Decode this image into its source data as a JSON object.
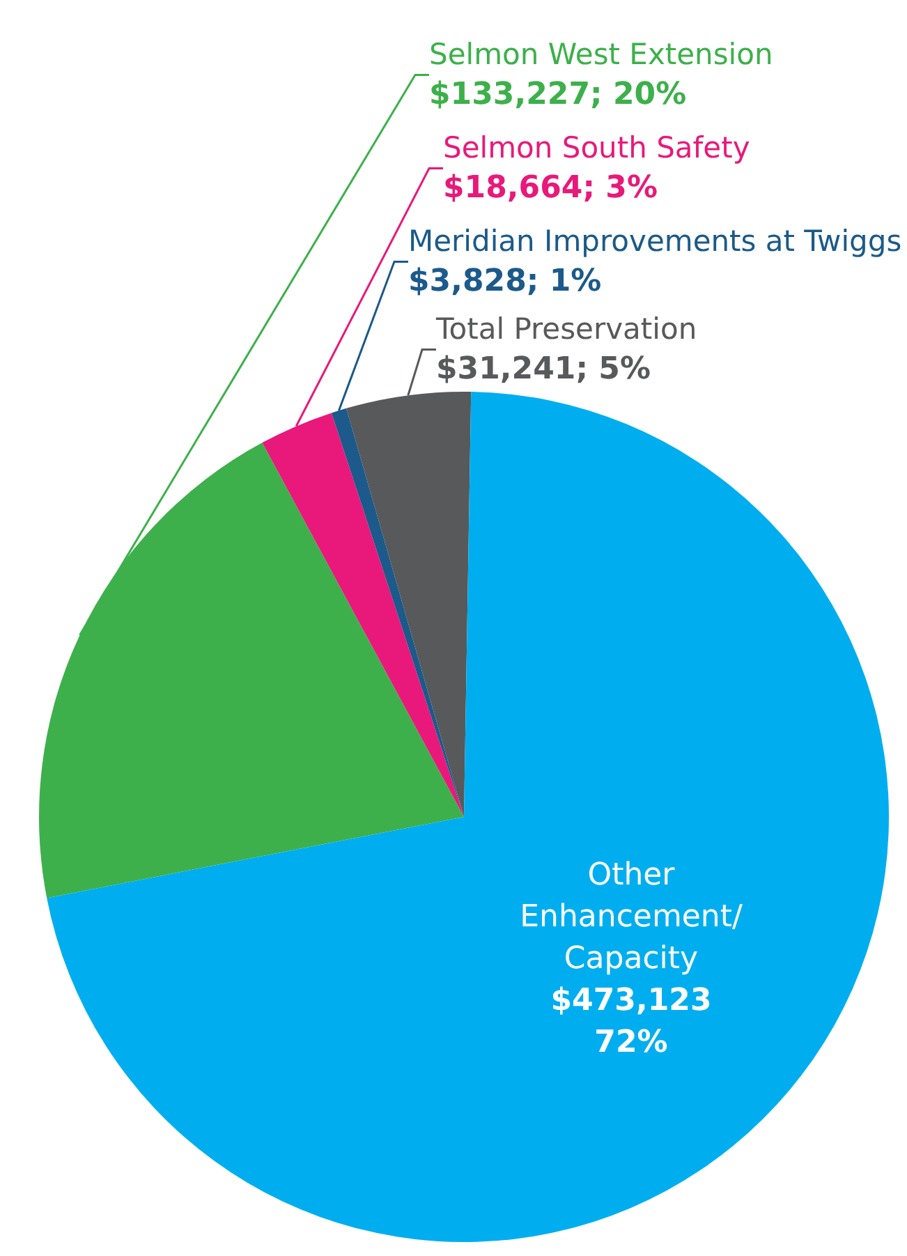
{
  "chart_data": {
    "type": "pie",
    "categories": [
      "Selmon West Extension",
      "Selmon South Safety",
      "Meridian Improvements at Twiggs",
      "Total Preservation",
      "Other Enhancement/ Capacity"
    ],
    "values": [
      133227,
      18664,
      3828,
      31241,
      473123
    ],
    "value_labels": [
      "$133,227; 20%",
      "$18,664; 3%",
      "$3,828; 1%",
      "$31,241; 5%",
      "$473,123 72%"
    ],
    "colors": [
      "#3db04b",
      "#e8197a",
      "#1b5a8a",
      "#58595b",
      "#00aeef"
    ]
  }
}
